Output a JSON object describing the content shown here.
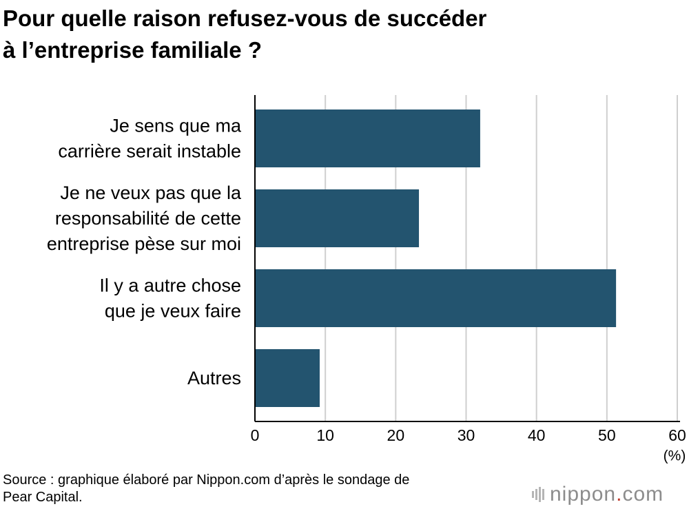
{
  "title_lines": [
    "Pour quelle raison refusez-vous de succéder",
    "à l’entreprise familiale ?"
  ],
  "chart_data": {
    "type": "bar",
    "orientation": "horizontal",
    "categories": [
      [
        "Je sens que ma",
        "carrière serait instable"
      ],
      [
        "Je ne veux pas que la",
        "responsabilité de cette",
        "entreprise pèse sur moi"
      ],
      [
        "Il y a autre chose",
        "que je veux faire"
      ],
      [
        "Autres"
      ]
    ],
    "values": [
      32,
      23.3,
      51.3,
      9.2
    ],
    "xlim": [
      0,
      60
    ],
    "xticks": [
      "0",
      "10",
      "20",
      "30",
      "40",
      "50",
      "60"
    ],
    "xunit": "(%)",
    "grid": true,
    "bar_color": "#23546f"
  },
  "source_lines": [
    "Source : graphique élaboré par Nippon.com d’après le sondage de",
    "Pear Capital."
  ],
  "logo": {
    "brand": "nippon",
    "dot": ".",
    "tld": "com"
  }
}
